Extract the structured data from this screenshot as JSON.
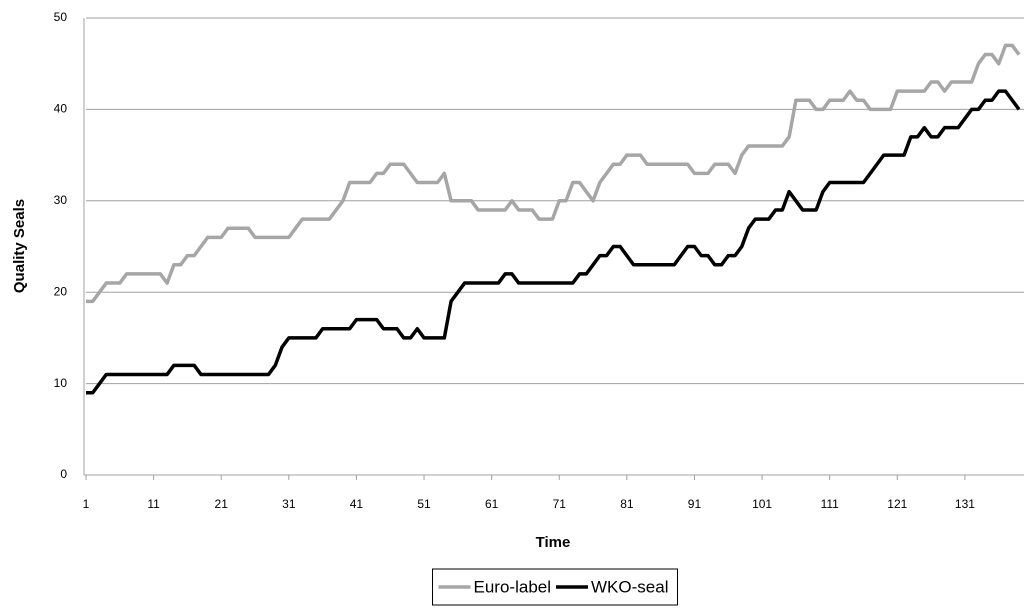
{
  "chart_data": {
    "type": "line",
    "x_label": "Time",
    "y_label": "Quality Seals",
    "x": [
      1,
      2,
      3,
      4,
      5,
      6,
      7,
      8,
      9,
      10,
      11,
      12,
      13,
      14,
      15,
      16,
      17,
      18,
      19,
      20,
      21,
      22,
      23,
      24,
      25,
      26,
      27,
      28,
      29,
      30,
      31,
      32,
      33,
      34,
      35,
      36,
      37,
      38,
      39,
      40,
      41,
      42,
      43,
      44,
      45,
      46,
      47,
      48,
      49,
      50,
      51,
      52,
      53,
      54,
      55,
      56,
      57,
      58,
      59,
      60,
      61,
      62,
      63,
      64,
      65,
      66,
      67,
      68,
      69,
      70,
      71,
      72,
      73,
      74,
      75,
      76,
      77,
      78,
      79,
      80,
      81,
      82,
      83,
      84,
      85,
      86,
      87,
      88,
      89,
      90,
      91,
      92,
      93,
      94,
      95,
      96,
      97,
      98,
      99,
      100,
      101,
      102,
      103,
      104,
      105,
      106,
      107,
      108,
      109,
      110,
      111,
      112,
      113,
      114,
      115,
      116,
      117,
      118,
      119,
      120,
      121,
      122,
      123,
      124,
      125,
      126,
      127,
      128,
      129,
      130,
      131,
      132,
      133,
      134,
      135,
      136,
      137,
      138,
      139
    ],
    "series": [
      {
        "name": "Euro-label",
        "color": "#a6a6a6",
        "values": [
          19,
          19,
          20,
          21,
          21,
          21,
          22,
          22,
          22,
          22,
          22,
          22,
          21,
          23,
          23,
          24,
          24,
          25,
          26,
          26,
          26,
          27,
          27,
          27,
          27,
          26,
          26,
          26,
          26,
          26,
          26,
          27,
          28,
          28,
          28,
          28,
          28,
          29,
          30,
          32,
          32,
          32,
          32,
          33,
          33,
          34,
          34,
          34,
          33,
          32,
          32,
          32,
          32,
          33,
          30,
          30,
          30,
          30,
          29,
          29,
          29,
          29,
          29,
          30,
          29,
          29,
          29,
          28,
          28,
          28,
          30,
          30,
          32,
          32,
          31,
          30,
          32,
          33,
          34,
          34,
          35,
          35,
          35,
          34,
          34,
          34,
          34,
          34,
          34,
          34,
          33,
          33,
          33,
          34,
          34,
          34,
          33,
          35,
          36,
          36,
          36,
          36,
          36,
          36,
          37,
          41,
          41,
          41,
          40,
          40,
          41,
          41,
          41,
          42,
          41,
          41,
          40,
          40,
          40,
          40,
          42,
          42,
          42,
          42,
          42,
          43,
          43,
          42,
          43,
          43,
          43,
          43,
          45,
          46,
          46,
          45,
          47,
          47,
          46
        ]
      },
      {
        "name": "WKO-seal",
        "color": "#000000",
        "values": [
          9,
          9,
          10,
          11,
          11,
          11,
          11,
          11,
          11,
          11,
          11,
          11,
          11,
          12,
          12,
          12,
          12,
          11,
          11,
          11,
          11,
          11,
          11,
          11,
          11,
          11,
          11,
          11,
          12,
          14,
          15,
          15,
          15,
          15,
          15,
          16,
          16,
          16,
          16,
          16,
          17,
          17,
          17,
          17,
          16,
          16,
          16,
          15,
          15,
          16,
          15,
          15,
          15,
          15,
          19,
          20,
          21,
          21,
          21,
          21,
          21,
          21,
          22,
          22,
          21,
          21,
          21,
          21,
          21,
          21,
          21,
          21,
          21,
          22,
          22,
          23,
          24,
          24,
          25,
          25,
          24,
          23,
          23,
          23,
          23,
          23,
          23,
          23,
          24,
          25,
          25,
          24,
          24,
          23,
          23,
          24,
          24,
          25,
          27,
          28,
          28,
          28,
          29,
          29,
          31,
          30,
          29,
          29,
          29,
          31,
          32,
          32,
          32,
          32,
          32,
          32,
          33,
          34,
          35,
          35,
          35,
          35,
          37,
          37,
          38,
          37,
          37,
          38,
          38,
          38,
          39,
          40,
          40,
          41,
          41,
          42,
          42,
          41,
          40
        ]
      }
    ],
    "xlim": [
      1,
      139
    ],
    "xticks": [
      1,
      11,
      21,
      31,
      41,
      51,
      61,
      71,
      81,
      91,
      101,
      111,
      121,
      131
    ],
    "ylim": [
      0,
      50
    ],
    "yticks": [
      0,
      10,
      20,
      30,
      40,
      50
    ],
    "grid": true,
    "legend": "bottom"
  }
}
